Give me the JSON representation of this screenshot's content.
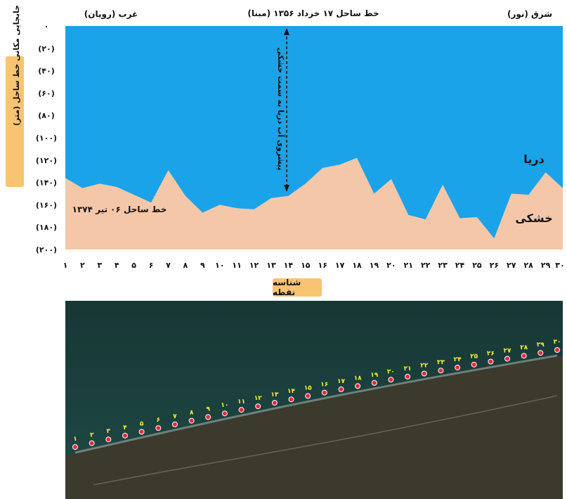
{
  "chart_data": {
    "type": "area",
    "title": "خط ساحل ۱۷ خرداد ۱۳۵۶ (مبنا)",
    "ylabel": "جابجایی مکانی خط ساحل (متر)",
    "xlabel": "شناسه نقطه",
    "west_label": "غرب (رویان)",
    "east_label": "شرق (نور)",
    "sea_label": "دریا",
    "land_label": "خشکی",
    "arrow_label": "پیشروی آب دریا به سمت خشکی",
    "shoreline_label": "خط ساحل ۰۶ تیر ۱۳۷۴",
    "ylim": [
      0,
      200
    ],
    "y_ticks": [
      0,
      20,
      40,
      60,
      80,
      100,
      120,
      140,
      160,
      180,
      200
    ],
    "y_tick_labels": [
      "۰",
      "(۲۰)",
      "(۴۰)",
      "(۶۰)",
      "(۸۰)",
      "(۱۰۰)",
      "(۱۲۰)",
      "(۱۴۰)",
      "(۱۶۰)",
      "(۱۸۰)",
      "(۲۰۰)"
    ],
    "x_tick_labels": [
      "۱",
      "۲",
      "۳",
      "۴",
      "۵",
      "۶",
      "۷",
      "۸",
      "۹",
      "۱۰",
      "۱۱",
      "۱۲",
      "۱۳",
      "۱۴",
      "۱۵",
      "۱۶",
      "۱۷",
      "۱۸",
      "۱۹",
      "۲۰",
      "۲۱",
      "۲۲",
      "۲۳",
      "۲۴",
      "۲۵",
      "۲۶",
      "۲۷",
      "۲۸",
      "۲۹",
      "۳۰"
    ],
    "x": [
      1,
      2,
      3,
      4,
      5,
      6,
      7,
      8,
      9,
      10,
      11,
      12,
      13,
      14,
      15,
      16,
      17,
      18,
      19,
      20,
      21,
      22,
      23,
      24,
      25,
      26,
      27,
      28,
      29,
      30
    ],
    "series": [
      {
        "values": [
          136,
          145,
          141,
          144,
          151,
          158,
          129,
          152,
          167,
          160,
          163,
          164,
          154,
          152,
          141,
          127,
          124,
          118,
          150,
          137,
          169,
          173,
          142,
          172,
          171,
          190,
          150,
          151,
          131,
          145
        ],
        "color": "#f5c7a9"
      }
    ],
    "sea_color": "#1aa3e8",
    "land_color": "#f5c7a9",
    "grid": false
  },
  "map": {
    "point_labels": [
      "۱",
      "۲",
      "۳",
      "۴",
      "۵",
      "۶",
      "۷",
      "۸",
      "۹",
      "۱۰",
      "۱۱",
      "۱۲",
      "۱۳",
      "۱۴",
      "۱۵",
      "۱۶",
      "۱۷",
      "۱۸",
      "۱۹",
      "۲۰",
      "۲۱",
      "۲۲",
      "۲۳",
      "۲۴",
      "۲۵",
      "۲۶",
      "۲۷",
      "۲۸",
      "۲۹",
      "۳۰"
    ],
    "sea_color": "#183c3a",
    "land_color": "#3b3a2c",
    "marker_color": "#e8283a",
    "label_color": "#f2f23a"
  }
}
